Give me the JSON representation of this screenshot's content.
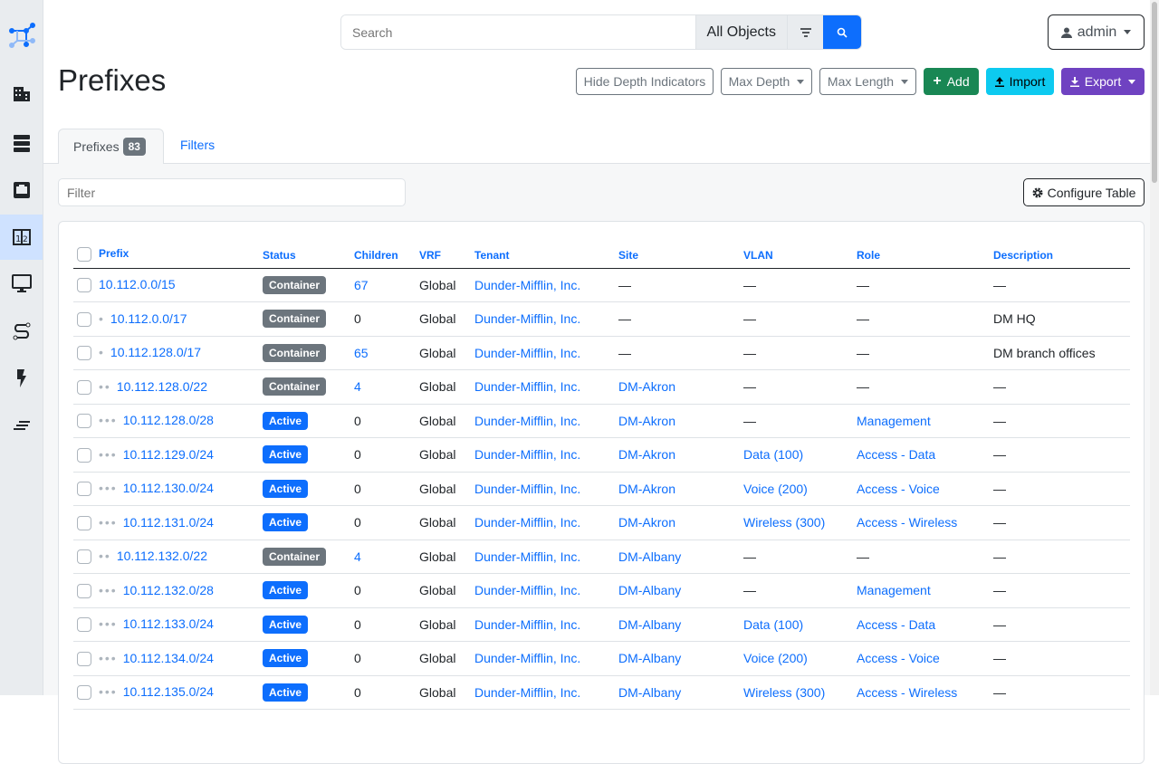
{
  "sidebar": {
    "items": [
      {
        "icon": "netbox-logo-icon"
      },
      {
        "icon": "organization-icon"
      },
      {
        "icon": "racks-icon"
      },
      {
        "icon": "devices-ethernet-icon"
      },
      {
        "icon": "ipam-icon",
        "active": true
      },
      {
        "icon": "virtualization-monitor-icon"
      },
      {
        "icon": "circuits-icon"
      },
      {
        "icon": "power-icon"
      },
      {
        "icon": "other-icon"
      }
    ]
  },
  "search": {
    "placeholder": "Search",
    "object_type": "All Objects"
  },
  "user": {
    "name": "admin"
  },
  "page": {
    "title": "Prefixes"
  },
  "actions": {
    "hide_depth": "Hide Depth Indicators",
    "max_depth": "Max Depth",
    "max_length": "Max Length",
    "add": "Add",
    "import": "Import",
    "export": "Export"
  },
  "colors": {
    "primary": "#0d6efd",
    "add": "#198754",
    "import": "#0dcaf0",
    "export": "#6f42c1",
    "container": "#6c757d",
    "active": "#0d6efd"
  },
  "tabs": [
    {
      "label": "Prefixes",
      "count": "83"
    },
    {
      "label": "Filters"
    }
  ],
  "filter": {
    "placeholder": "Filter"
  },
  "configure_table": "Configure Table",
  "table": {
    "columns": [
      "Prefix",
      "Status",
      "Children",
      "VRF",
      "Tenant",
      "Site",
      "VLAN",
      "Role",
      "Description"
    ],
    "rows": [
      {
        "depth": 0,
        "prefix": "10.112.0.0/15",
        "status": "Container",
        "children": "67",
        "vrf": "Global",
        "tenant": "Dunder-Mifflin, Inc.",
        "site": "—",
        "vlan": "—",
        "role": "—",
        "description": "—"
      },
      {
        "depth": 1,
        "prefix": "10.112.0.0/17",
        "status": "Container",
        "children": "0",
        "vrf": "Global",
        "tenant": "Dunder-Mifflin, Inc.",
        "site": "—",
        "vlan": "—",
        "role": "—",
        "description": "DM HQ"
      },
      {
        "depth": 1,
        "prefix": "10.112.128.0/17",
        "status": "Container",
        "children": "65",
        "vrf": "Global",
        "tenant": "Dunder-Mifflin, Inc.",
        "site": "—",
        "vlan": "—",
        "role": "—",
        "description": "DM branch offices"
      },
      {
        "depth": 2,
        "prefix": "10.112.128.0/22",
        "status": "Container",
        "children": "4",
        "vrf": "Global",
        "tenant": "Dunder-Mifflin, Inc.",
        "site": "DM-Akron",
        "vlan": "—",
        "role": "—",
        "description": "—"
      },
      {
        "depth": 3,
        "prefix": "10.112.128.0/28",
        "status": "Active",
        "children": "0",
        "vrf": "Global",
        "tenant": "Dunder-Mifflin, Inc.",
        "site": "DM-Akron",
        "vlan": "—",
        "role": "Management",
        "description": "—"
      },
      {
        "depth": 3,
        "prefix": "10.112.129.0/24",
        "status": "Active",
        "children": "0",
        "vrf": "Global",
        "tenant": "Dunder-Mifflin, Inc.",
        "site": "DM-Akron",
        "vlan": "Data (100)",
        "role": "Access - Data",
        "description": "—"
      },
      {
        "depth": 3,
        "prefix": "10.112.130.0/24",
        "status": "Active",
        "children": "0",
        "vrf": "Global",
        "tenant": "Dunder-Mifflin, Inc.",
        "site": "DM-Akron",
        "vlan": "Voice (200)",
        "role": "Access - Voice",
        "description": "—"
      },
      {
        "depth": 3,
        "prefix": "10.112.131.0/24",
        "status": "Active",
        "children": "0",
        "vrf": "Global",
        "tenant": "Dunder-Mifflin, Inc.",
        "site": "DM-Akron",
        "vlan": "Wireless (300)",
        "role": "Access - Wireless",
        "description": "—"
      },
      {
        "depth": 2,
        "prefix": "10.112.132.0/22",
        "status": "Container",
        "children": "4",
        "vrf": "Global",
        "tenant": "Dunder-Mifflin, Inc.",
        "site": "DM-Albany",
        "vlan": "—",
        "role": "—",
        "description": "—"
      },
      {
        "depth": 3,
        "prefix": "10.112.132.0/28",
        "status": "Active",
        "children": "0",
        "vrf": "Global",
        "tenant": "Dunder-Mifflin, Inc.",
        "site": "DM-Albany",
        "vlan": "—",
        "role": "Management",
        "description": "—"
      },
      {
        "depth": 3,
        "prefix": "10.112.133.0/24",
        "status": "Active",
        "children": "0",
        "vrf": "Global",
        "tenant": "Dunder-Mifflin, Inc.",
        "site": "DM-Albany",
        "vlan": "Data (100)",
        "role": "Access - Data",
        "description": "—"
      },
      {
        "depth": 3,
        "prefix": "10.112.134.0/24",
        "status": "Active",
        "children": "0",
        "vrf": "Global",
        "tenant": "Dunder-Mifflin, Inc.",
        "site": "DM-Albany",
        "vlan": "Voice (200)",
        "role": "Access - Voice",
        "description": "—"
      },
      {
        "depth": 3,
        "prefix": "10.112.135.0/24",
        "status": "Active",
        "children": "0",
        "vrf": "Global",
        "tenant": "Dunder-Mifflin, Inc.",
        "site": "DM-Albany",
        "vlan": "Wireless (300)",
        "role": "Access - Wireless",
        "description": "—"
      }
    ]
  }
}
